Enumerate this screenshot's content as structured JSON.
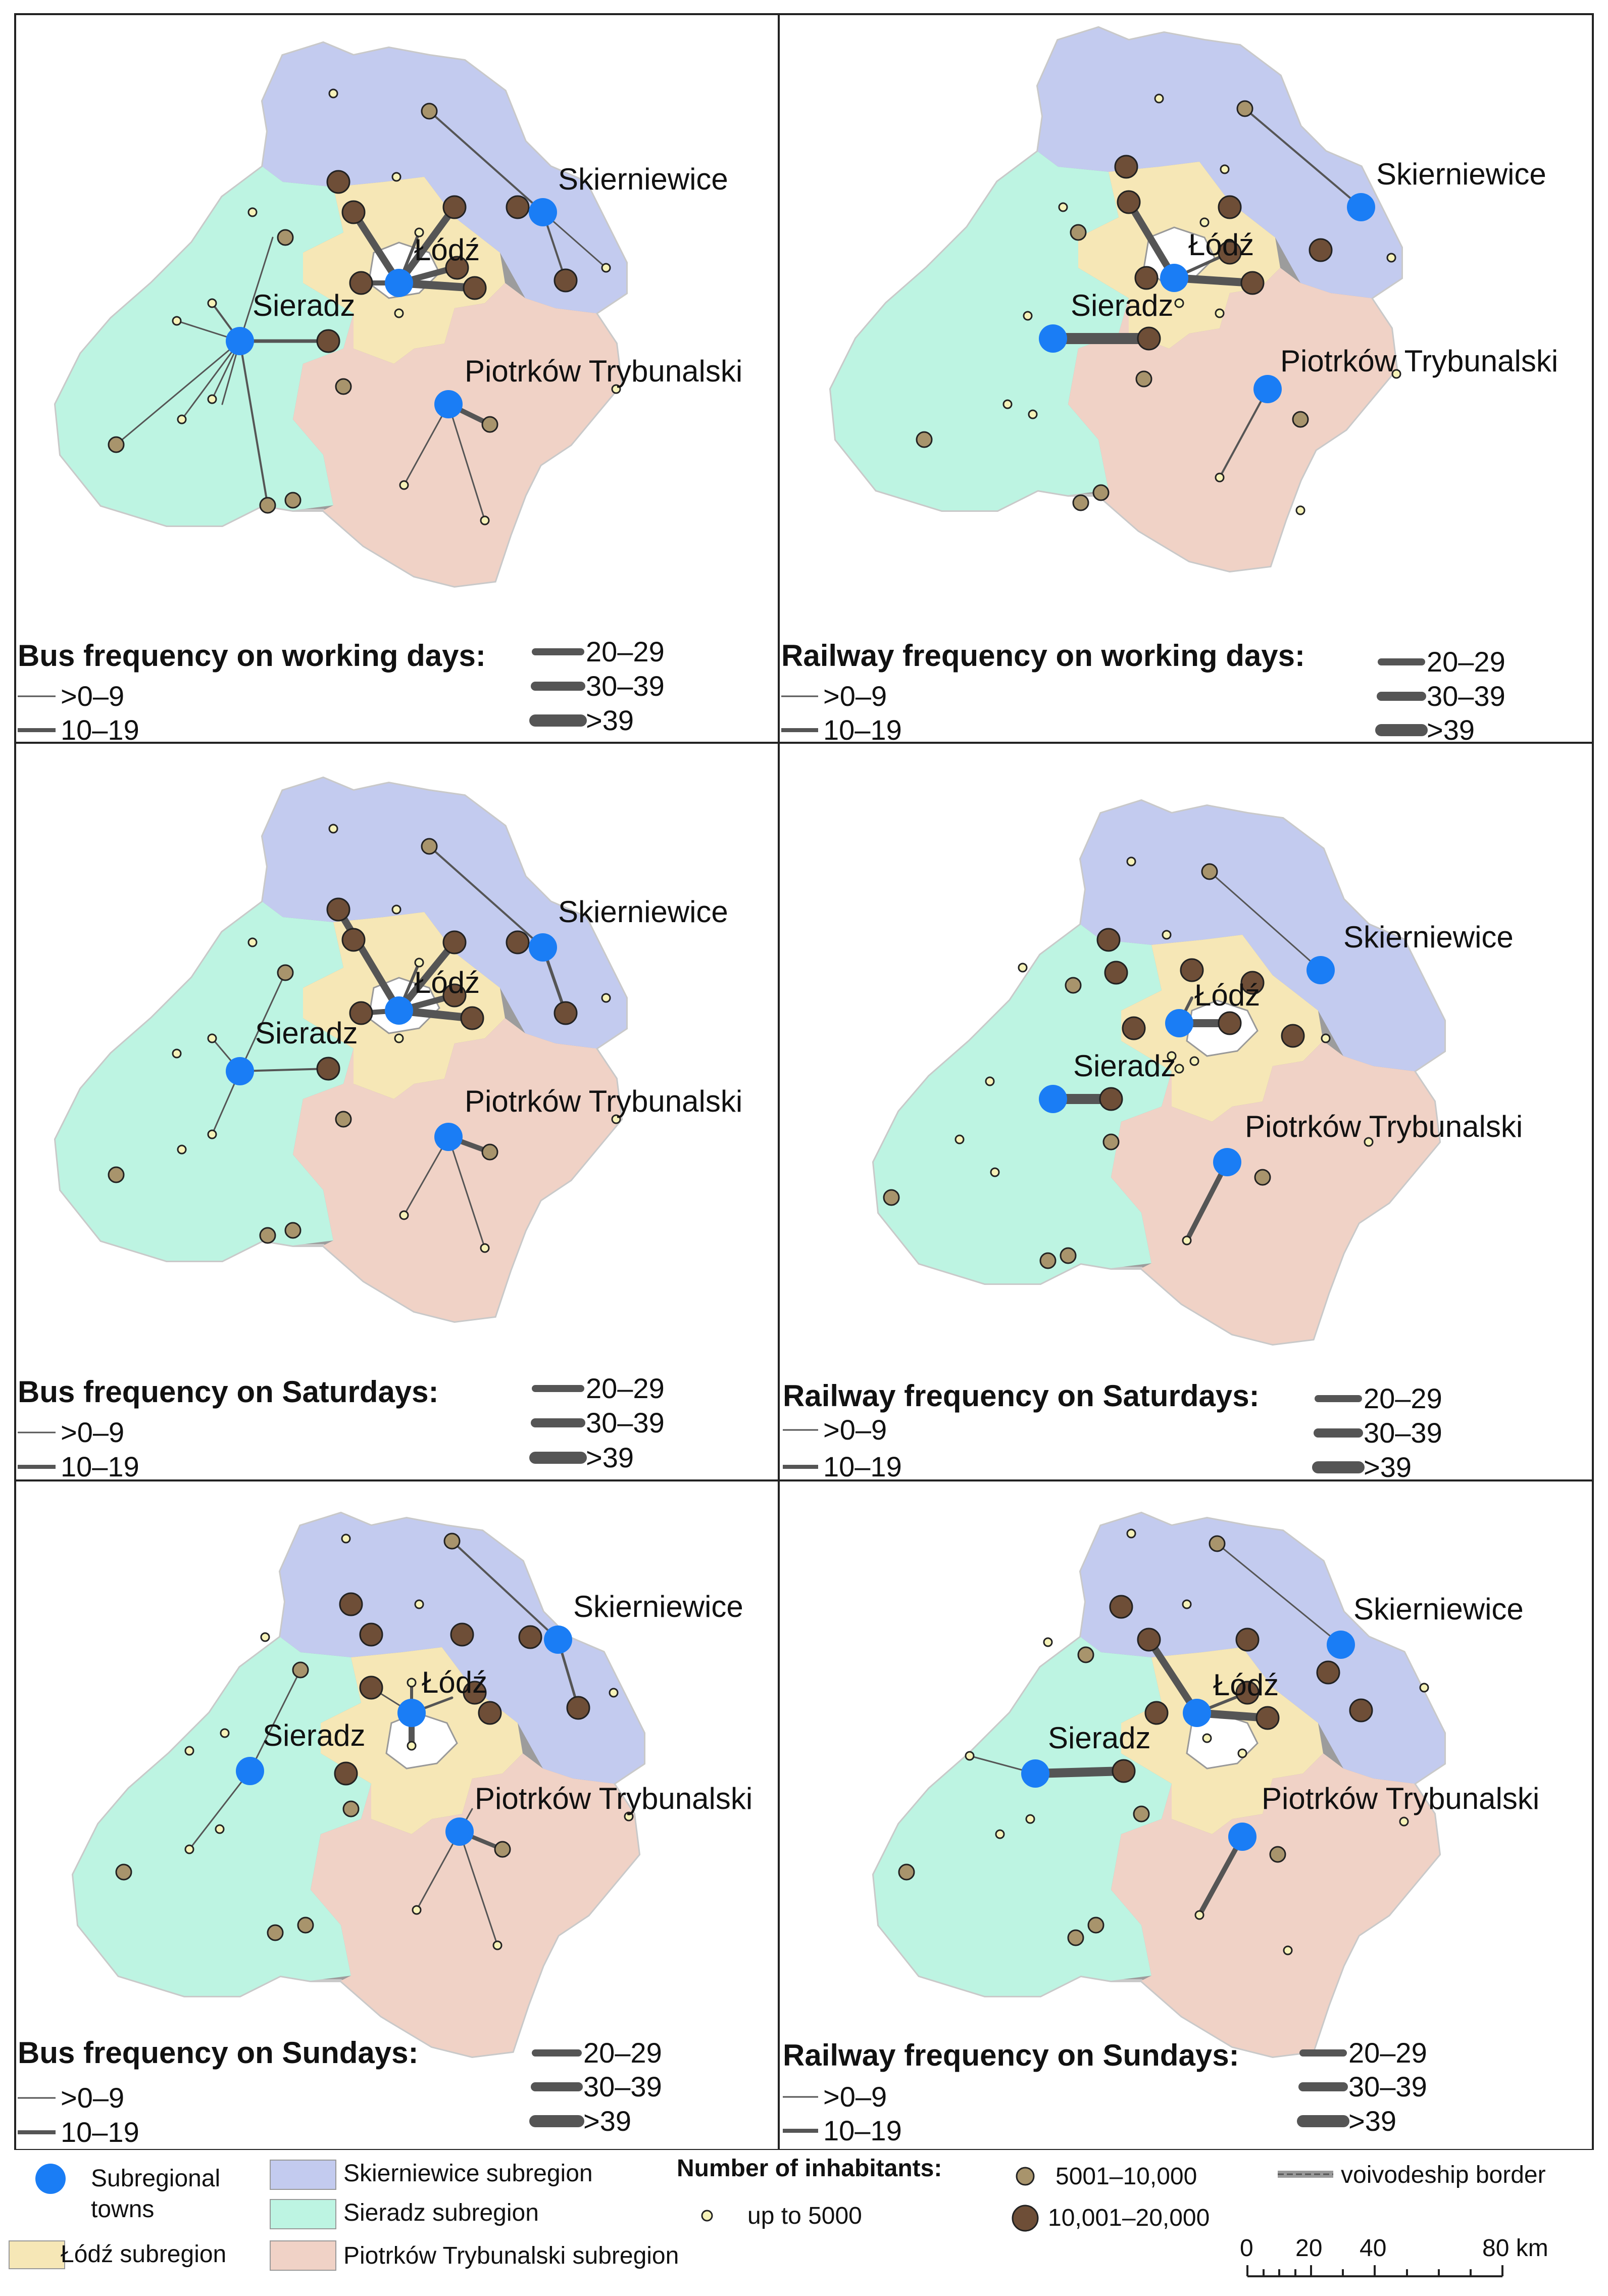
{
  "colors": {
    "skierniewice_subregion": "#c3cbef",
    "sieradz_subregion": "#bdf4e2",
    "lodz_subregion": "#f6e7b6",
    "piotrkow_subregion": "#f0d2c6",
    "subregional_town": "#1a7df5",
    "town_small": "#f6f2b8",
    "town_medium": "#a8946c",
    "town_large": "#6e4e37",
    "link": "#555555",
    "border": "#9a9a9a"
  },
  "towns": {
    "lodz": "Łódź",
    "sieradz": "Sieradz",
    "skierniewice": "Skierniewice",
    "piotrkow": "Piotrków Trybunalski"
  },
  "panels": [
    {
      "title": "Bus frequency on working days:",
      "legend": [
        ">0–9",
        "10–19",
        "20–29",
        "30–39",
        ">39"
      ]
    },
    {
      "title": "Railway frequency on working days:",
      "legend": [
        ">0–9",
        "10–19",
        "20–29",
        "30–39",
        ">39"
      ]
    },
    {
      "title": "Bus frequency on Saturdays:",
      "legend": [
        ">0–9",
        "10–19",
        "20–29",
        "30–39",
        ">39"
      ]
    },
    {
      "title": "Railway frequency on Saturdays:",
      "legend": [
        ">0–9",
        "10–19",
        "20–29",
        "30–39",
        ">39"
      ]
    },
    {
      "title": "Bus frequency on Sundays:",
      "legend": [
        ">0–9",
        "10–19",
        "20–29",
        "30–39",
        ">39"
      ]
    },
    {
      "title": "Railway frequency on Sundays:",
      "legend": [
        ">0–9",
        "10–19",
        "20–29",
        "30–39",
        ">39"
      ]
    }
  ],
  "legend": {
    "subregional_towns_line1": "Subregional",
    "subregional_towns_line2": "towns",
    "skierniewice_subregion": "Skierniewice subregion",
    "sieradz_subregion": "Sieradz subregion",
    "lodz_subregion": "Łódź subregion",
    "piotrkow_subregion": "Piotrków Trybunalski subregion",
    "inhabitants_title": "Number of inhabitants:",
    "up_to_5000": "up to 5000",
    "from_5001": "5001–10,000",
    "from_10001": "10,001–20,000",
    "voivodeship_border": "voivodeship border",
    "scale": [
      "0",
      "20",
      "40",
      "80 km"
    ]
  }
}
